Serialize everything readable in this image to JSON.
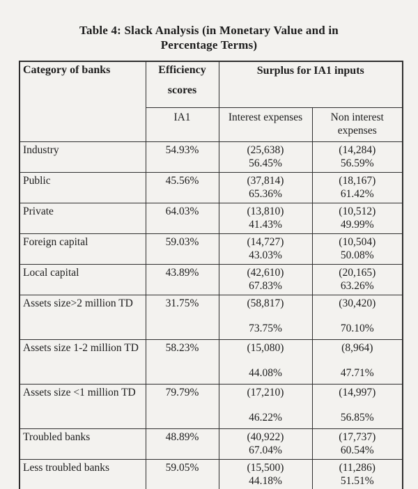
{
  "page": {
    "title_line1": "Table 4: Slack Analysis (in Monetary Value and in",
    "title_line2": "Percentage Terms)"
  },
  "table": {
    "header": {
      "col_category": "Category of banks",
      "col_efficiency_line1": "Efficiency",
      "col_efficiency_line2": "scores",
      "col_surplus": "Surplus for IA1 inputs",
      "sub_efficiency": "IA1",
      "sub_interest": "Interest expenses",
      "sub_non_interest": "Non interest expenses"
    },
    "rows": [
      {
        "category": "Industry",
        "efficiency": "54.93%",
        "interest_value": "(25,638)",
        "interest_pct": "56.45%",
        "non_interest_value": "(14,284)",
        "non_interest_pct": "56.59%"
      },
      {
        "category": "Public",
        "efficiency": "45.56%",
        "interest_value": "(37,814)",
        "interest_pct": "65.36%",
        "non_interest_value": "(18,167)",
        "non_interest_pct": "61.42%"
      },
      {
        "category": "Private",
        "efficiency": "64.03%",
        "interest_value": "(13,810)",
        "interest_pct": "41.43%",
        "non_interest_value": "(10,512)",
        "non_interest_pct": "49.99%"
      },
      {
        "category": "Foreign capital",
        "efficiency": "59.03%",
        "interest_value": "(14,727)",
        "interest_pct": "43.03%",
        "non_interest_value": "(10,504)",
        "non_interest_pct": "50.08%"
      },
      {
        "category": "Local capital",
        "efficiency": "43.89%",
        "interest_value": "(42,610)",
        "interest_pct": "67.83%",
        "non_interest_value": "(20,165)",
        "non_interest_pct": "63.26%"
      },
      {
        "category": "Assets size>2 million TD",
        "efficiency": "31.75%",
        "interest_value": "(58,817)",
        "interest_pct": "73.75%",
        "non_interest_value": "(30,420)",
        "non_interest_pct": "70.10%"
      },
      {
        "category": "Assets size 1-2 million TD",
        "efficiency": "58.23%",
        "interest_value": "(15,080)",
        "interest_pct": "44.08%",
        "non_interest_value": "(8,964)",
        "non_interest_pct": "47.71%"
      },
      {
        "category": "Assets size <1 million TD",
        "efficiency": "79.79%",
        "interest_value": "(17,210)",
        "interest_pct": "46.22%",
        "non_interest_value": "(14,997)",
        "non_interest_pct": "56.85%"
      },
      {
        "category": "Troubled banks",
        "efficiency": "48.89%",
        "interest_value": "(40,922)",
        "interest_pct": "67.04%",
        "non_interest_value": "(17,737)",
        "non_interest_pct": "60.54%"
      },
      {
        "category": "Less troubled banks",
        "efficiency": "59.05%",
        "interest_value": "(15,500)",
        "interest_pct": "44.18%",
        "non_interest_value": "(11,286)",
        "non_interest_pct": "51.51%"
      }
    ]
  }
}
